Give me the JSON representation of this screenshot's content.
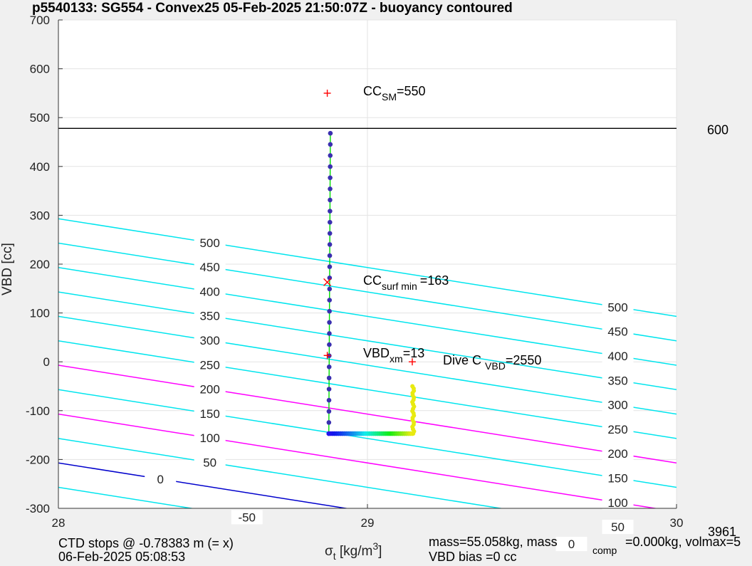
{
  "chart_data": {
    "type": "line",
    "title": "p5540133: SG554 - Convex25 05-Feb-2025 21:50:07Z - buoyancy contoured",
    "xlabel": "σ_t [kg/m^3]",
    "ylabel": "VBD [cc]",
    "xlim": [
      28,
      30
    ],
    "ylim": [
      -300,
      700
    ],
    "xticks": [
      28,
      29,
      30
    ],
    "yticks": [
      -300,
      -200,
      -100,
      0,
      100,
      200,
      300,
      400,
      500,
      600,
      700
    ],
    "grid": true,
    "colors": {
      "contour": "#00e5ee",
      "highlight_contour": "#ff00ff",
      "zero_contour": "#0000cc",
      "reference_line": "#000000",
      "trajectory": "#00dd00",
      "dots": "#3a2fb0",
      "markers": "#ff0000"
    },
    "contours": {
      "slope_vbd_per_sigma": -100,
      "levels": [
        -50,
        0,
        50,
        100,
        150,
        200,
        250,
        300,
        350,
        400,
        450,
        500
      ],
      "intercepts_at_28": [
        -257,
        -207,
        -157,
        -107,
        -57,
        -7,
        43,
        93,
        143,
        193,
        243,
        293
      ],
      "highlight_levels": [
        100,
        200
      ],
      "zero_level": 0,
      "left_labels": [
        {
          "level": 500,
          "text": "500"
        },
        {
          "level": 450,
          "text": "450"
        },
        {
          "level": 400,
          "text": "400"
        },
        {
          "level": 350,
          "text": "350"
        },
        {
          "level": 300,
          "text": "300"
        },
        {
          "level": 250,
          "text": "250"
        },
        {
          "level": 200,
          "text": "200"
        },
        {
          "level": 150,
          "text": "150"
        },
        {
          "level": 100,
          "text": "100"
        },
        {
          "level": 50,
          "text": "50"
        },
        {
          "level": 0,
          "text": "0"
        },
        {
          "level": -50,
          "text": "-50"
        }
      ],
      "right_labels": [
        {
          "level": 500,
          "text": "500"
        },
        {
          "level": 450,
          "text": "450"
        },
        {
          "level": 400,
          "text": "400"
        },
        {
          "level": 350,
          "text": "350"
        },
        {
          "level": 300,
          "text": "300"
        },
        {
          "level": 250,
          "text": "250"
        },
        {
          "level": 200,
          "text": "200"
        },
        {
          "level": 150,
          "text": "150"
        },
        {
          "level": 100,
          "text": "100"
        },
        {
          "level": 50,
          "text": "50"
        },
        {
          "level": 0,
          "text": "0"
        }
      ]
    },
    "reference_line": {
      "y": 478,
      "label": "600"
    },
    "trajectory": {
      "vertical": {
        "x": [
          28.875,
          28.88
        ],
        "y": [
          -147,
          468
        ]
      },
      "bottom_x_range": [
        28.875,
        29.145
      ],
      "bottom_y": -147,
      "right_x": 29.148,
      "right_y_range": [
        -147,
        -50
      ]
    },
    "markers": [
      {
        "x": 28.87,
        "y": 550,
        "shape": "plus"
      },
      {
        "x": 28.87,
        "y": 163,
        "shape": "x"
      },
      {
        "x": 28.87,
        "y": 13,
        "shape": "plus"
      },
      {
        "x": 29.145,
        "y": 0,
        "shape": "plus"
      }
    ],
    "annotations": [
      {
        "main": "CC",
        "sub": "SM",
        "rest": "=550"
      },
      {
        "main": "CC",
        "sub": "surf min",
        "rest": "=163"
      },
      {
        "main": "VBD",
        "sub": "xm",
        "rest": "=13"
      },
      {
        "main": "Dive C",
        "sub": "VBD",
        "rest": "=2550"
      }
    ],
    "footer": {
      "left_line1": "CTD stops @ -0.78383 m (= x)",
      "left_line2": "06-Feb-2025 05:08:53",
      "mid_line1_a": "mass=55.058kg, mass",
      "mid_sub": "comp",
      "mid_line1_b": "=0.000kg, volmax=5",
      "mid_line2": "VBD bias =0 cc",
      "corner_value": "3961"
    }
  }
}
